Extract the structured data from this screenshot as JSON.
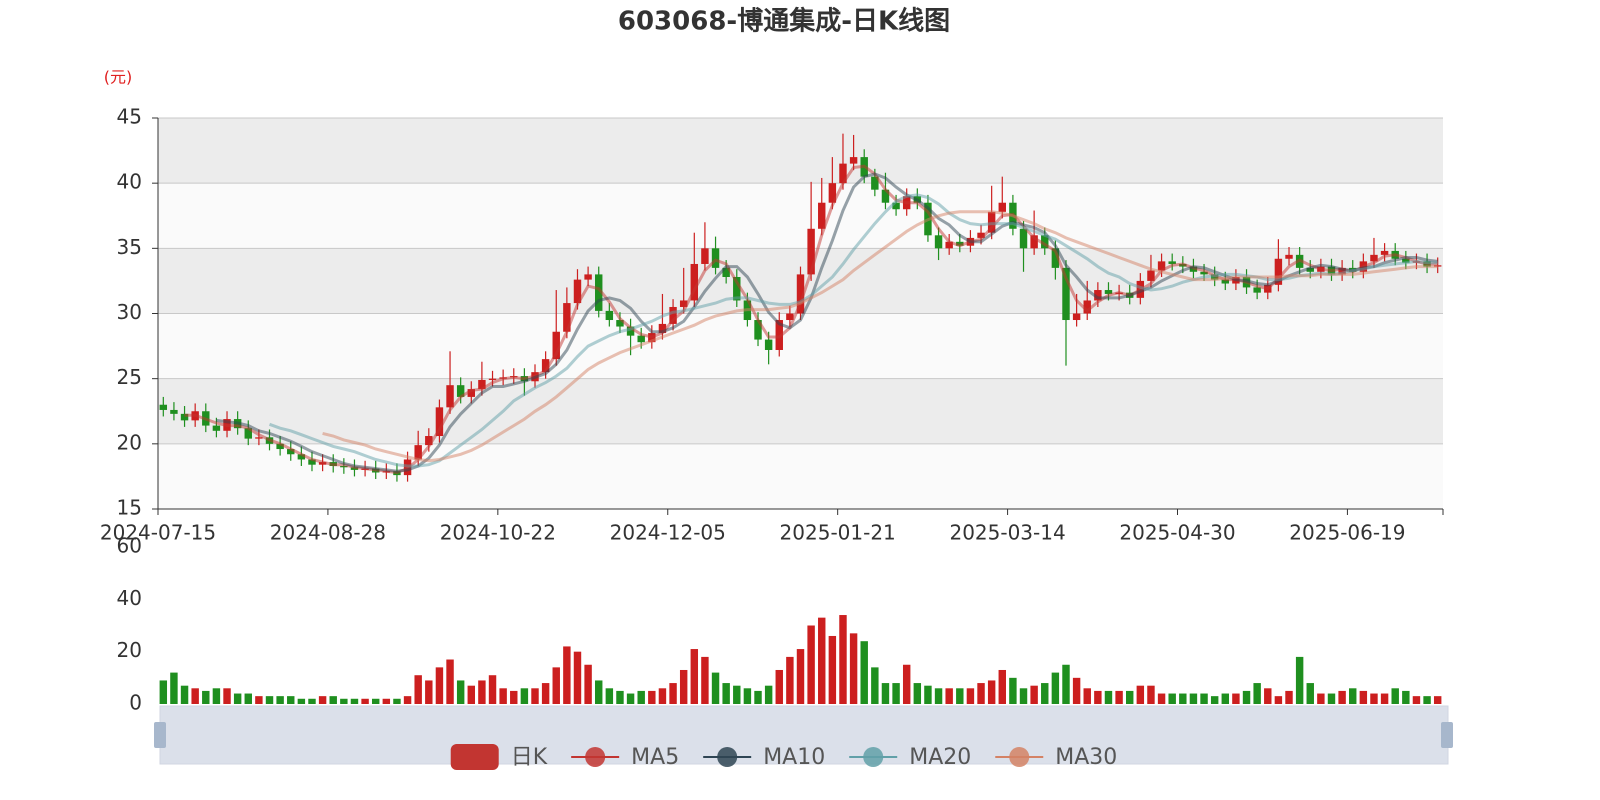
{
  "chart_data": {
    "type": "candlestick",
    "title": "603068-博通集成-日K线图",
    "y_label": "(元)",
    "categories": [
      "2024-07-15",
      null,
      null,
      null,
      null,
      null,
      null,
      null,
      null,
      null,
      null,
      null,
      null,
      null,
      null,
      null,
      "2024-08-28",
      null,
      null,
      null,
      null,
      null,
      null,
      null,
      null,
      null,
      null,
      null,
      null,
      null,
      null,
      null,
      "2024-10-22",
      null,
      null,
      null,
      null,
      null,
      null,
      null,
      null,
      null,
      null,
      null,
      null,
      null,
      null,
      null,
      "2024-12-05",
      null,
      null,
      null,
      null,
      null,
      null,
      null,
      null,
      null,
      null,
      null,
      null,
      null,
      null,
      null,
      "2025-01-21",
      null,
      null,
      null,
      null,
      null,
      null,
      null,
      null,
      null,
      null,
      null,
      null,
      null,
      null,
      null,
      "2025-03-14",
      null,
      null,
      null,
      null,
      null,
      null,
      null,
      null,
      null,
      null,
      null,
      null,
      null,
      null,
      null,
      "2025-04-30",
      null,
      null,
      null,
      null,
      null,
      null,
      null,
      null,
      null,
      null,
      null,
      null,
      null,
      null,
      null,
      "2025-06-19",
      null,
      null,
      null,
      null,
      null,
      null,
      null,
      null
    ],
    "ylim": [
      15,
      45
    ],
    "yticks": [
      15,
      20,
      25,
      30,
      35,
      40,
      45
    ],
    "split_area": [
      "#fafafa",
      "#ececec"
    ],
    "grid": true,
    "up_color": "#cc1f1f",
    "down_color": "#1f8f1f",
    "series": [
      {
        "name": "日K",
        "type": "candlestick",
        "color": "#c23531",
        "open": [
          23.0,
          22.6,
          22.3,
          21.8,
          22.5,
          21.4,
          21.0,
          21.9,
          21.2,
          20.4,
          20.5,
          20.0,
          19.6,
          19.2,
          18.8,
          18.4,
          18.6,
          18.3,
          18.2,
          18.0,
          18.1,
          17.8,
          17.9,
          17.6,
          18.8,
          19.9,
          20.6,
          22.8,
          24.5,
          23.6,
          24.2,
          24.9,
          25.0,
          25.1,
          25.2,
          24.8,
          25.5,
          26.5,
          28.6,
          30.8,
          32.6,
          33.0,
          30.2,
          29.5,
          29.0,
          28.3,
          27.8,
          28.5,
          29.2,
          30.5,
          31.0,
          33.8,
          35.0,
          33.5,
          32.8,
          31.0,
          29.5,
          28.0,
          27.2,
          29.5,
          30.0,
          33.0,
          36.5,
          38.5,
          40.0,
          41.5,
          42.0,
          40.5,
          39.5,
          38.5,
          38.0,
          39.0,
          38.5,
          36.0,
          35.0,
          35.5,
          35.2,
          35.8,
          36.2,
          37.8,
          38.5,
          36.5,
          35.0,
          36.0,
          35.0,
          33.5,
          29.5,
          30.0,
          31.0,
          31.8,
          31.5,
          31.6,
          31.2,
          32.5,
          33.3,
          34.0,
          33.8,
          33.6,
          33.2,
          33.0,
          32.6,
          32.3,
          32.8,
          32.0,
          31.6,
          32.2,
          34.2,
          34.5,
          33.5,
          33.2,
          33.6,
          33.0,
          33.5,
          33.2,
          34.0,
          34.5,
          34.8,
          34.2,
          33.9,
          34.0,
          33.6
        ],
        "close": [
          22.6,
          22.3,
          21.8,
          22.5,
          21.4,
          21.0,
          21.9,
          21.2,
          20.4,
          20.5,
          20.0,
          19.6,
          19.2,
          18.8,
          18.4,
          18.6,
          18.3,
          18.2,
          18.0,
          18.1,
          17.8,
          17.9,
          17.6,
          18.8,
          19.9,
          20.6,
          22.8,
          24.5,
          23.6,
          24.2,
          24.9,
          25.0,
          25.1,
          25.2,
          24.8,
          25.5,
          26.5,
          28.6,
          30.8,
          32.6,
          33.0,
          30.2,
          29.5,
          29.0,
          28.3,
          27.8,
          28.5,
          29.2,
          30.5,
          31.0,
          33.8,
          35.0,
          33.5,
          32.8,
          31.0,
          29.5,
          28.0,
          27.2,
          29.5,
          30.0,
          33.0,
          36.5,
          38.5,
          40.0,
          41.5,
          42.0,
          40.5,
          39.5,
          38.5,
          38.0,
          39.0,
          38.5,
          36.0,
          35.0,
          35.5,
          35.2,
          35.8,
          36.2,
          37.8,
          38.5,
          36.5,
          35.0,
          36.0,
          35.0,
          33.5,
          29.5,
          30.0,
          31.0,
          31.8,
          31.5,
          31.6,
          31.2,
          32.5,
          33.3,
          34.0,
          33.8,
          33.6,
          33.2,
          33.0,
          32.6,
          32.3,
          32.8,
          32.0,
          31.6,
          32.2,
          34.2,
          34.5,
          33.5,
          33.2,
          33.6,
          33.0,
          33.5,
          33.2,
          34.0,
          34.5,
          34.8,
          34.2,
          33.9,
          34.0,
          33.6,
          33.7
        ],
        "low": [
          22.1,
          21.8,
          21.3,
          21.3,
          20.9,
          20.5,
          20.5,
          20.7,
          19.9,
          19.9,
          19.5,
          19.1,
          18.7,
          18.3,
          17.9,
          17.9,
          17.8,
          17.7,
          17.5,
          17.5,
          17.3,
          17.3,
          17.1,
          17.1,
          18.3,
          19.4,
          20.1,
          22.3,
          23.1,
          23.1,
          23.7,
          24.4,
          24.5,
          24.6,
          23.7,
          24.3,
          25.0,
          26.0,
          28.1,
          30.3,
          32.1,
          29.7,
          29.0,
          28.5,
          26.8,
          27.3,
          27.3,
          28.0,
          28.7,
          30.0,
          30.5,
          33.3,
          33.0,
          32.3,
          30.5,
          29.0,
          27.5,
          26.1,
          26.7,
          29.0,
          29.5,
          32.5,
          36.0,
          38.0,
          39.5,
          41.0,
          40.0,
          39.0,
          38.0,
          37.5,
          37.5,
          38.0,
          35.5,
          34.1,
          34.5,
          34.7,
          34.7,
          35.3,
          35.7,
          37.3,
          36.0,
          33.2,
          34.5,
          34.5,
          32.6,
          26.0,
          29.0,
          29.5,
          30.5,
          31.0,
          31.0,
          30.7,
          30.7,
          32.0,
          32.8,
          33.3,
          33.1,
          32.7,
          32.5,
          32.1,
          31.8,
          31.8,
          31.5,
          31.1,
          31.1,
          31.7,
          33.7,
          33.0,
          32.7,
          32.7,
          32.5,
          32.5,
          32.7,
          32.7,
          33.5,
          34.0,
          33.7,
          33.4,
          33.4,
          33.1,
          33.1
        ],
        "high": [
          23.6,
          23.2,
          22.9,
          23.1,
          23.1,
          22.0,
          22.5,
          22.5,
          21.8,
          21.1,
          21.1,
          20.6,
          20.2,
          19.8,
          19.4,
          19.2,
          19.2,
          18.9,
          18.8,
          18.7,
          18.7,
          18.5,
          18.5,
          19.4,
          21.0,
          21.2,
          23.4,
          27.1,
          25.1,
          24.8,
          26.3,
          25.6,
          25.7,
          25.8,
          25.8,
          26.1,
          27.1,
          31.8,
          32.0,
          33.4,
          33.6,
          33.6,
          30.8,
          30.1,
          29.6,
          28.9,
          29.1,
          31.5,
          31.1,
          33.5,
          36.2,
          37.0,
          35.9,
          34.1,
          33.4,
          31.6,
          30.1,
          28.6,
          30.1,
          30.6,
          33.6,
          40.1,
          40.4,
          42.0,
          43.8,
          43.7,
          42.6,
          41.1,
          40.8,
          39.1,
          39.6,
          39.6,
          39.1,
          36.6,
          36.1,
          36.1,
          36.4,
          36.8,
          39.8,
          40.5,
          39.1,
          37.1,
          37.9,
          36.6,
          35.6,
          34.1,
          31.5,
          32.5,
          32.4,
          32.4,
          32.2,
          32.2,
          33.1,
          34.5,
          34.6,
          34.6,
          34.4,
          34.2,
          33.8,
          33.6,
          33.2,
          33.4,
          33.4,
          32.6,
          32.8,
          35.7,
          35.1,
          35.1,
          34.1,
          34.2,
          34.2,
          34.1,
          34.1,
          34.6,
          35.8,
          35.4,
          35.4,
          34.8,
          34.6,
          34.6,
          34.3
        ]
      },
      {
        "name": "MA5",
        "type": "line",
        "color": "#c23531",
        "values": [
          null,
          null,
          22.2,
          22.2,
          21.9,
          21.6,
          21.4,
          21.4,
          21.2,
          20.7,
          20.3,
          20.0,
          19.6,
          19.2,
          18.8,
          18.6,
          18.4,
          18.4,
          18.2,
          18.1,
          18.0,
          17.9,
          17.8,
          18.1,
          18.8,
          19.8,
          21.1,
          22.6,
          23.6,
          24.1,
          24.2,
          24.7,
          25.0,
          25.1,
          25.0,
          25.2,
          25.6,
          26.9,
          28.6,
          30.7,
          32.1,
          31.9,
          30.9,
          29.6,
          28.9,
          28.4,
          28.2,
          28.5,
          29.5,
          30.2,
          31.8,
          33.3,
          34.1,
          33.8,
          32.4,
          31.1,
          29.5,
          28.2,
          28.2,
          28.9,
          30.8,
          33.2,
          36.0,
          38.3,
          40.0,
          41.2,
          41.3,
          40.7,
          39.5,
          38.7,
          38.5,
          38.5,
          37.8,
          36.5,
          35.5,
          35.2,
          35.5,
          35.7,
          36.6,
          37.5,
          37.6,
          36.7,
          35.8,
          35.3,
          34.8,
          32.7,
          31.0,
          30.2,
          30.9,
          31.4,
          31.6,
          31.4,
          31.8,
          32.3,
          33.3,
          33.7,
          33.8,
          33.5,
          33.3,
          32.9,
          32.6,
          32.6,
          32.4,
          32.1,
          31.9,
          32.7,
          33.6,
          34.1,
          33.7,
          33.4,
          33.3,
          33.4,
          33.2,
          33.6,
          33.9,
          34.4,
          34.5,
          34.3,
          34.0,
          33.8,
          33.8
        ]
      },
      {
        "name": "MA10",
        "type": "line",
        "color": "#2f4554",
        "values": [
          null,
          null,
          null,
          null,
          null,
          21.8,
          21.7,
          21.6,
          21.4,
          21.0,
          20.8,
          20.5,
          20.2,
          19.8,
          19.4,
          19.1,
          18.8,
          18.5,
          18.3,
          18.2,
          18.1,
          18.0,
          17.9,
          18.0,
          18.3,
          18.9,
          19.9,
          21.3,
          22.3,
          23.1,
          23.9,
          24.4,
          24.4,
          24.6,
          24.8,
          25.1,
          25.4,
          26.1,
          27.2,
          28.8,
          30.2,
          31.0,
          31.2,
          31.0,
          30.4,
          29.4,
          28.6,
          28.6,
          28.9,
          29.4,
          30.5,
          31.7,
          32.7,
          33.6,
          33.6,
          32.8,
          31.5,
          30.1,
          29.2,
          28.9,
          29.5,
          31.2,
          33.5,
          35.6,
          37.9,
          39.7,
          40.5,
          40.7,
          40.4,
          39.7,
          39.1,
          38.7,
          38.1,
          37.3,
          36.8,
          36.0,
          35.5,
          35.5,
          36.1,
          36.7,
          37.0,
          36.8,
          36.6,
          36.2,
          35.2,
          33.7,
          32.8,
          31.8,
          31.2,
          31.2,
          31.2,
          31.4,
          31.7,
          32.0,
          32.5,
          32.9,
          33.3,
          33.6,
          33.5,
          33.2,
          32.9,
          32.6,
          32.5,
          32.3,
          32.2,
          32.5,
          32.9,
          33.2,
          33.5,
          33.7,
          33.6,
          33.4,
          33.3,
          33.5,
          33.6,
          33.9,
          34.1,
          34.3,
          34.3,
          34.1,
          34.0
        ]
      },
      {
        "name": "MA20",
        "type": "line",
        "color": "#61a0a8",
        "values": [
          null,
          null,
          null,
          null,
          null,
          null,
          null,
          null,
          null,
          null,
          21.5,
          21.2,
          21.0,
          20.7,
          20.4,
          20.1,
          19.8,
          19.6,
          19.4,
          19.1,
          18.8,
          18.6,
          18.4,
          18.3,
          18.3,
          18.4,
          18.7,
          19.3,
          19.9,
          20.5,
          21.1,
          21.8,
          22.5,
          23.3,
          23.8,
          24.3,
          24.7,
          25.2,
          25.8,
          26.7,
          27.5,
          27.9,
          28.3,
          28.6,
          28.8,
          29.1,
          29.4,
          29.8,
          30.1,
          30.2,
          30.4,
          30.6,
          30.8,
          31.1,
          31.2,
          31.2,
          31.0,
          30.8,
          30.7,
          30.7,
          30.9,
          31.4,
          32.1,
          32.8,
          33.8,
          34.9,
          35.9,
          36.9,
          37.8,
          38.6,
          39.0,
          39.1,
          38.9,
          38.4,
          37.7,
          37.2,
          36.9,
          36.8,
          36.9,
          36.9,
          36.9,
          36.6,
          36.3,
          36.0,
          35.7,
          35.2,
          34.7,
          34.2,
          33.6,
          33.1,
          32.8,
          32.3,
          32.0,
          31.8,
          31.9,
          32.1,
          32.4,
          32.6,
          32.8,
          32.9,
          33.0,
          33.0,
          32.9,
          32.8,
          32.6,
          32.6,
          32.7,
          32.9,
          33.0,
          33.1,
          33.0,
          33.1,
          33.3,
          33.4,
          33.6,
          33.7,
          33.8,
          33.9,
          34.0,
          33.9,
          33.9
        ]
      },
      {
        "name": "MA30",
        "type": "line",
        "color": "#d48265",
        "values": [
          null,
          null,
          null,
          null,
          null,
          null,
          null,
          null,
          null,
          null,
          null,
          null,
          null,
          null,
          null,
          20.8,
          20.6,
          20.3,
          20.1,
          19.9,
          19.6,
          19.4,
          19.2,
          19.0,
          18.8,
          18.7,
          18.8,
          19.0,
          19.2,
          19.5,
          19.9,
          20.4,
          20.9,
          21.4,
          21.9,
          22.5,
          23.0,
          23.6,
          24.3,
          25.0,
          25.7,
          26.2,
          26.6,
          27.0,
          27.3,
          27.6,
          27.9,
          28.2,
          28.5,
          28.8,
          29.1,
          29.5,
          29.8,
          30.0,
          30.2,
          30.3,
          30.3,
          30.3,
          30.4,
          30.5,
          30.8,
          31.2,
          31.6,
          32.1,
          32.6,
          33.3,
          33.9,
          34.5,
          35.1,
          35.7,
          36.3,
          36.8,
          37.2,
          37.5,
          37.7,
          37.8,
          37.8,
          37.8,
          37.8,
          37.7,
          37.5,
          37.2,
          36.9,
          36.5,
          36.2,
          35.8,
          35.5,
          35.2,
          34.9,
          34.6,
          34.3,
          34.0,
          33.7,
          33.4,
          33.2,
          33.0,
          32.8,
          32.6,
          32.6,
          32.6,
          32.7,
          32.8,
          32.8,
          32.8,
          32.8,
          32.8,
          32.9,
          32.9,
          32.9,
          33.0,
          33.0,
          33.0,
          33.0,
          33.1,
          33.2,
          33.3,
          33.4,
          33.5,
          33.6,
          33.6,
          33.6
        ]
      }
    ],
    "volume": {
      "ylim": [
        0,
        60
      ],
      "yticks": [
        0,
        20,
        40,
        60
      ],
      "values": [
        9,
        12,
        7,
        6,
        5,
        6,
        6,
        4,
        4,
        3,
        3,
        3,
        3,
        2,
        2,
        3,
        3,
        2,
        2,
        2,
        2,
        2,
        2,
        3,
        11,
        9,
        14,
        17,
        9,
        7,
        9,
        11,
        6,
        5,
        6,
        6,
        8,
        14,
        22,
        20,
        15,
        9,
        6,
        5,
        4,
        5,
        5,
        6,
        8,
        13,
        21,
        18,
        12,
        8,
        7,
        6,
        5,
        7,
        13,
        18,
        21,
        30,
        33,
        26,
        34,
        27,
        24,
        14,
        8,
        8,
        15,
        8,
        7,
        6,
        6,
        6,
        6,
        8,
        9,
        13,
        10,
        6,
        7,
        8,
        12,
        15,
        10,
        6,
        5,
        5,
        5,
        5,
        7,
        7,
        4,
        4,
        4,
        4,
        4,
        3,
        4,
        4,
        5,
        8,
        6,
        3,
        5,
        18,
        8,
        4,
        4,
        5,
        6,
        5,
        4,
        4,
        6,
        5,
        3,
        3,
        3
      ]
    }
  }
}
